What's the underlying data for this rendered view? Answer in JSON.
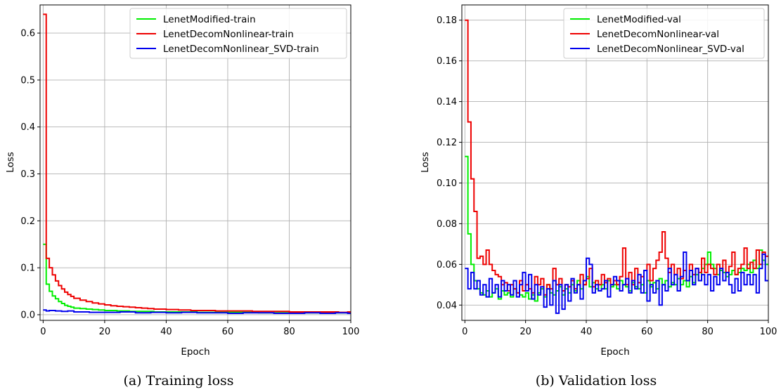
{
  "chart_data": [
    {
      "type": "line",
      "drawstyle": "steps",
      "caption": "(a)  Training loss",
      "xlabel": "Epoch",
      "ylabel": "Loss",
      "xlim": [
        -1,
        100
      ],
      "ylim": [
        -0.012,
        0.66
      ],
      "xticks": [
        0,
        20,
        40,
        60,
        80,
        100
      ],
      "yticks": [
        0.0,
        0.1,
        0.2,
        0.3,
        0.4,
        0.5,
        0.6
      ],
      "grid": true,
      "legend_position": "top-right",
      "series": [
        {
          "name": "LenetModified-train",
          "color": "#00ee00",
          "x": [
            0,
            1,
            2,
            3,
            4,
            5,
            6,
            7,
            8,
            9,
            10,
            12,
            14,
            16,
            18,
            20,
            24,
            28,
            32,
            36,
            40,
            50,
            60,
            70,
            80,
            90,
            99
          ],
          "y": [
            0.15,
            0.065,
            0.05,
            0.04,
            0.034,
            0.028,
            0.024,
            0.02,
            0.018,
            0.016,
            0.014,
            0.013,
            0.012,
            0.011,
            0.01,
            0.009,
            0.008,
            0.007,
            0.007,
            0.006,
            0.006,
            0.005,
            0.005,
            0.004,
            0.004,
            0.004,
            0.004
          ]
        },
        {
          "name": "LenetDecomNonlinear-train",
          "color": "#ee0000",
          "x": [
            0,
            1,
            2,
            3,
            4,
            5,
            6,
            7,
            8,
            9,
            10,
            12,
            14,
            16,
            18,
            20,
            22,
            24,
            26,
            28,
            30,
            32,
            34,
            36,
            38,
            40,
            44,
            48,
            52,
            56,
            60,
            64,
            68,
            72,
            76,
            80,
            84,
            88,
            92,
            96,
            99
          ],
          "y": [
            0.64,
            0.12,
            0.1,
            0.085,
            0.072,
            0.062,
            0.055,
            0.048,
            0.043,
            0.039,
            0.035,
            0.031,
            0.028,
            0.025,
            0.023,
            0.021,
            0.019,
            0.018,
            0.017,
            0.016,
            0.015,
            0.014,
            0.013,
            0.012,
            0.012,
            0.011,
            0.01,
            0.009,
            0.009,
            0.008,
            0.008,
            0.008,
            0.007,
            0.007,
            0.007,
            0.006,
            0.006,
            0.006,
            0.006,
            0.005,
            0.006
          ]
        },
        {
          "name": "LenetDecomNonlinear_SVD-train",
          "color": "#0000ee",
          "x": [
            0,
            1,
            2,
            4,
            6,
            8,
            10,
            15,
            20,
            25,
            30,
            35,
            40,
            45,
            50,
            55,
            60,
            65,
            70,
            75,
            80,
            85,
            90,
            95,
            99
          ],
          "y": [
            0.01,
            0.008,
            0.009,
            0.008,
            0.007,
            0.008,
            0.006,
            0.005,
            0.005,
            0.006,
            0.004,
            0.005,
            0.004,
            0.005,
            0.004,
            0.004,
            0.003,
            0.004,
            0.004,
            0.003,
            0.003,
            0.004,
            0.003,
            0.004,
            0.003
          ]
        }
      ]
    },
    {
      "type": "line",
      "drawstyle": "steps",
      "caption": "(b)  Validation loss",
      "xlabel": "Epoch",
      "ylabel": "Loss",
      "xlim": [
        -1,
        100
      ],
      "ylim": [
        0.0325,
        0.1875
      ],
      "xticks": [
        0,
        20,
        40,
        60,
        80,
        100
      ],
      "yticks": [
        0.04,
        0.06,
        0.08,
        0.1,
        0.12,
        0.14,
        0.16,
        0.18
      ],
      "grid": true,
      "legend_position": "top-right",
      "series": [
        {
          "name": "LenetModified-val",
          "color": "#00ee00",
          "x": [
            0,
            1,
            2,
            3,
            4,
            5,
            6,
            7,
            8,
            9,
            10,
            11,
            12,
            13,
            14,
            15,
            16,
            17,
            18,
            19,
            20,
            21,
            22,
            23,
            24,
            25,
            26,
            27,
            28,
            29,
            30,
            31,
            32,
            33,
            34,
            35,
            36,
            37,
            38,
            39,
            40,
            41,
            42,
            43,
            44,
            45,
            46,
            47,
            48,
            49,
            50,
            51,
            52,
            53,
            54,
            55,
            56,
            57,
            58,
            59,
            60,
            61,
            62,
            63,
            64,
            65,
            66,
            67,
            68,
            69,
            70,
            71,
            72,
            73,
            74,
            75,
            76,
            77,
            78,
            79,
            80,
            81,
            82,
            83,
            84,
            85,
            86,
            87,
            88,
            89,
            90,
            91,
            92,
            93,
            94,
            95,
            96,
            97,
            98,
            99
          ],
          "y": [
            0.113,
            0.075,
            0.06,
            0.052,
            0.048,
            0.046,
            0.045,
            0.047,
            0.044,
            0.046,
            0.048,
            0.043,
            0.047,
            0.045,
            0.046,
            0.044,
            0.048,
            0.046,
            0.045,
            0.044,
            0.046,
            0.043,
            0.045,
            0.042,
            0.046,
            0.048,
            0.044,
            0.05,
            0.046,
            0.045,
            0.047,
            0.049,
            0.045,
            0.048,
            0.046,
            0.05,
            0.047,
            0.052,
            0.048,
            0.05,
            0.054,
            0.049,
            0.051,
            0.048,
            0.047,
            0.05,
            0.048,
            0.052,
            0.049,
            0.05,
            0.048,
            0.052,
            0.05,
            0.049,
            0.047,
            0.051,
            0.049,
            0.048,
            0.05,
            0.046,
            0.052,
            0.049,
            0.051,
            0.048,
            0.053,
            0.05,
            0.052,
            0.049,
            0.051,
            0.05,
            0.053,
            0.05,
            0.052,
            0.049,
            0.054,
            0.051,
            0.055,
            0.052,
            0.058,
            0.06,
            0.066,
            0.06,
            0.058,
            0.055,
            0.057,
            0.056,
            0.054,
            0.055,
            0.057,
            0.055,
            0.056,
            0.058,
            0.057,
            0.06,
            0.056,
            0.062,
            0.058,
            0.067,
            0.062,
            0.06
          ]
        },
        {
          "name": "LenetDecomNonlinear-val",
          "color": "#ee0000",
          "x": [
            0,
            1,
            2,
            3,
            4,
            5,
            6,
            7,
            8,
            9,
            10,
            11,
            12,
            13,
            14,
            15,
            16,
            17,
            18,
            19,
            20,
            21,
            22,
            23,
            24,
            25,
            26,
            27,
            28,
            29,
            30,
            31,
            32,
            33,
            34,
            35,
            36,
            37,
            38,
            39,
            40,
            41,
            42,
            43,
            44,
            45,
            46,
            47,
            48,
            49,
            50,
            51,
            52,
            53,
            54,
            55,
            56,
            57,
            58,
            59,
            60,
            61,
            62,
            63,
            64,
            65,
            66,
            67,
            68,
            69,
            70,
            71,
            72,
            73,
            74,
            75,
            76,
            77,
            78,
            79,
            80,
            81,
            82,
            83,
            84,
            85,
            86,
            87,
            88,
            89,
            90,
            91,
            92,
            93,
            94,
            95,
            96,
            97,
            98,
            99
          ],
          "y": [
            0.18,
            0.13,
            0.102,
            0.086,
            0.063,
            0.064,
            0.06,
            0.067,
            0.06,
            0.057,
            0.055,
            0.054,
            0.05,
            0.051,
            0.047,
            0.05,
            0.048,
            0.046,
            0.052,
            0.047,
            0.05,
            0.048,
            0.046,
            0.054,
            0.05,
            0.053,
            0.045,
            0.05,
            0.048,
            0.058,
            0.05,
            0.053,
            0.047,
            0.05,
            0.049,
            0.052,
            0.048,
            0.05,
            0.055,
            0.05,
            0.053,
            0.058,
            0.049,
            0.052,
            0.05,
            0.055,
            0.051,
            0.053,
            0.05,
            0.052,
            0.05,
            0.054,
            0.068,
            0.05,
            0.056,
            0.05,
            0.058,
            0.051,
            0.054,
            0.057,
            0.06,
            0.052,
            0.058,
            0.062,
            0.066,
            0.076,
            0.063,
            0.056,
            0.06,
            0.055,
            0.058,
            0.053,
            0.057,
            0.052,
            0.06,
            0.055,
            0.058,
            0.056,
            0.063,
            0.056,
            0.06,
            0.058,
            0.055,
            0.06,
            0.058,
            0.062,
            0.056,
            0.059,
            0.066,
            0.055,
            0.058,
            0.06,
            0.068,
            0.058,
            0.061,
            0.058,
            0.067,
            0.06,
            0.066,
            0.064
          ]
        },
        {
          "name": "LenetDecomNonlinear_SVD-val",
          "color": "#0000ee",
          "x": [
            0,
            1,
            2,
            3,
            4,
            5,
            6,
            7,
            8,
            9,
            10,
            11,
            12,
            13,
            14,
            15,
            16,
            17,
            18,
            19,
            20,
            21,
            22,
            23,
            24,
            25,
            26,
            27,
            28,
            29,
            30,
            31,
            32,
            33,
            34,
            35,
            36,
            37,
            38,
            39,
            40,
            41,
            42,
            43,
            44,
            45,
            46,
            47,
            48,
            49,
            50,
            51,
            52,
            53,
            54,
            55,
            56,
            57,
            58,
            59,
            60,
            61,
            62,
            63,
            64,
            65,
            66,
            67,
            68,
            69,
            70,
            71,
            72,
            73,
            74,
            75,
            76,
            77,
            78,
            79,
            80,
            81,
            82,
            83,
            84,
            85,
            86,
            87,
            88,
            89,
            90,
            91,
            92,
            93,
            94,
            95,
            96,
            97,
            98,
            99
          ],
          "y": [
            0.058,
            0.048,
            0.056,
            0.048,
            0.052,
            0.045,
            0.05,
            0.044,
            0.053,
            0.046,
            0.05,
            0.044,
            0.052,
            0.047,
            0.05,
            0.045,
            0.052,
            0.044,
            0.05,
            0.056,
            0.047,
            0.055,
            0.043,
            0.05,
            0.045,
            0.049,
            0.039,
            0.048,
            0.04,
            0.052,
            0.036,
            0.05,
            0.038,
            0.05,
            0.042,
            0.053,
            0.046,
            0.05,
            0.043,
            0.052,
            0.063,
            0.06,
            0.046,
            0.05,
            0.047,
            0.048,
            0.052,
            0.044,
            0.05,
            0.054,
            0.052,
            0.047,
            0.05,
            0.053,
            0.046,
            0.052,
            0.048,
            0.055,
            0.046,
            0.057,
            0.042,
            0.05,
            0.046,
            0.052,
            0.04,
            0.05,
            0.047,
            0.058,
            0.05,
            0.055,
            0.047,
            0.054,
            0.066,
            0.052,
            0.057,
            0.05,
            0.058,
            0.052,
            0.055,
            0.05,
            0.055,
            0.047,
            0.054,
            0.05,
            0.058,
            0.052,
            0.056,
            0.05,
            0.046,
            0.053,
            0.047,
            0.056,
            0.05,
            0.055,
            0.05,
            0.055,
            0.046,
            0.058,
            0.065,
            0.052
          ]
        }
      ]
    }
  ]
}
